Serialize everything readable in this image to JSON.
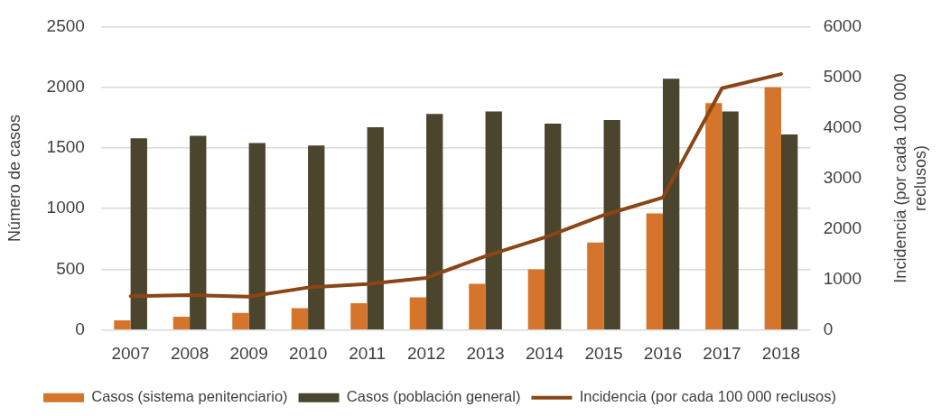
{
  "chart_data": {
    "type": "bar",
    "ylabel": "Número de casos",
    "y2label": "Incidencia (por cada 100 000 reclusos)",
    "categories": [
      "2007",
      "2008",
      "2009",
      "2010",
      "2011",
      "2012",
      "2013",
      "2014",
      "2015",
      "2016",
      "2017",
      "2018"
    ],
    "series": [
      {
        "name": "Casos (sistema penitenciario)",
        "color": "#d5742b",
        "values": [
          80,
          110,
          140,
          180,
          220,
          270,
          380,
          500,
          720,
          960,
          1870,
          2000
        ]
      },
      {
        "name": "Casos (población general)",
        "color": "#4b452d",
        "values": [
          1580,
          1600,
          1540,
          1520,
          1670,
          1780,
          1800,
          1700,
          1730,
          2070,
          1800,
          1610
        ]
      },
      {
        "name": "Incidencia (por cada 100 000 reclusos)",
        "type": "line",
        "axis": "y2",
        "color": "#8a4616",
        "values": [
          670,
          690,
          660,
          840,
          910,
          1030,
          1460,
          1830,
          2270,
          2620,
          4780,
          5060
        ]
      }
    ],
    "ylim": [
      0,
      2500
    ],
    "yticks": [
      0,
      500,
      1000,
      1500,
      2000,
      2500
    ],
    "y2lim": [
      0,
      6000
    ],
    "y2ticks": [
      0,
      1000,
      2000,
      3000,
      4000,
      5000,
      6000
    ],
    "grid": "y",
    "legend": "bottom",
    "line_style": "solid"
  }
}
